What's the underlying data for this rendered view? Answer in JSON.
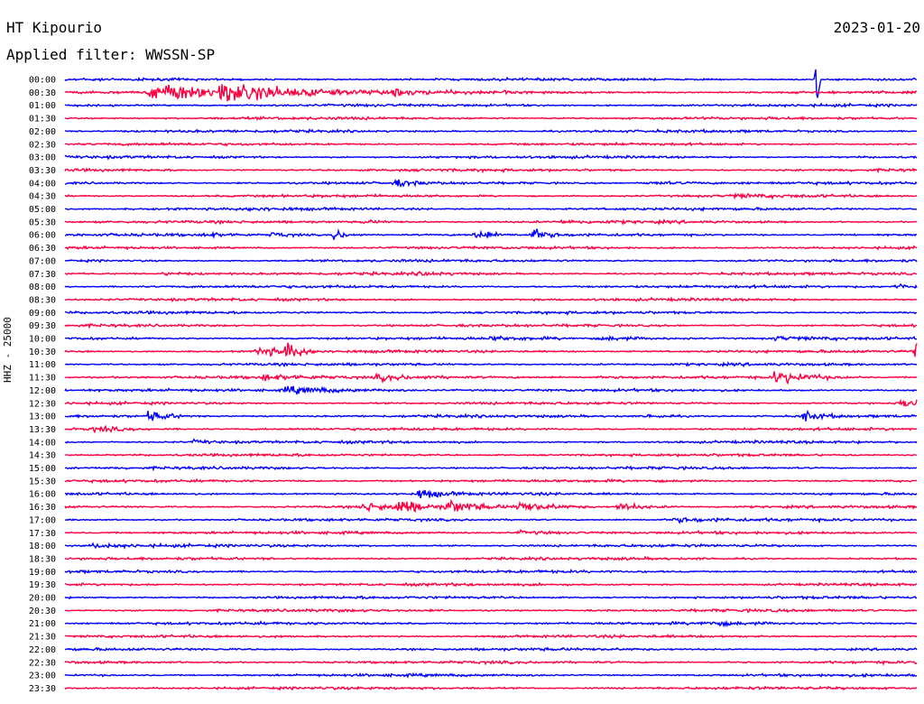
{
  "header": {
    "station": "HT Kipourio",
    "date": "2023-01-20",
    "filter_text": "Applied filter: WWSSN-SP",
    "channel_label": "HHZ - 25000"
  },
  "colors": {
    "trace_a": "#0000ff",
    "trace_b": "#ff0040",
    "text": "#000000",
    "background": "#ffffff"
  },
  "chart_data": {
    "type": "line",
    "title": "HT Kipourio",
    "subtitle": "Applied filter: WWSSN-SP",
    "ylabel": "HHZ - 25000",
    "xlabel": "",
    "row_labels": [
      "00:00",
      "00:30",
      "01:00",
      "01:30",
      "02:00",
      "02:30",
      "03:00",
      "03:30",
      "04:00",
      "04:30",
      "05:00",
      "05:30",
      "06:00",
      "06:30",
      "07:00",
      "07:30",
      "08:00",
      "08:30",
      "09:00",
      "09:30",
      "10:00",
      "10:30",
      "11:00",
      "11:30",
      "12:00",
      "12:30",
      "13:00",
      "13:30",
      "14:00",
      "14:30",
      "15:00",
      "15:30",
      "16:00",
      "16:30",
      "17:00",
      "17:30",
      "18:00",
      "18:30",
      "19:00",
      "19:30",
      "20:00",
      "20:30",
      "21:00",
      "21:30",
      "22:00",
      "22:30",
      "23:00",
      "23:30"
    ],
    "row_duration_minutes": 30,
    "color_cycle": [
      "blue",
      "red"
    ],
    "events": [
      {
        "row": "00:00",
        "minute": 26.5,
        "amp": 2.2
      },
      {
        "row": "00:30",
        "minute": 3.0,
        "amp": 2.5,
        "coda": 2.5
      },
      {
        "row": "00:30",
        "minute": 5.5,
        "amp": 2.0,
        "coda": 2.5
      },
      {
        "row": "00:30",
        "minute": 8.5,
        "amp": 0.8,
        "coda": 0.8
      },
      {
        "row": "00:30",
        "minute": 11.5,
        "amp": 0.5,
        "coda": 0.6
      },
      {
        "row": "00:30",
        "minute": 13.5,
        "amp": 0.4,
        "coda": 0.5
      },
      {
        "row": "00:30",
        "minute": 11.5,
        "amp": 0.5,
        "coda": 0.4
      },
      {
        "row": "00:30",
        "minute": 15.5,
        "amp": 0.3,
        "coda": 0.5
      },
      {
        "row": "04:00",
        "minute": 11.7,
        "amp": 0.9,
        "coda": 0.5
      },
      {
        "row": "04:00",
        "minute": 20.5,
        "amp": 0.4,
        "coda": 1.5
      },
      {
        "row": "04:30",
        "minute": 23.5,
        "amp": 0.4,
        "coda": 1.5
      },
      {
        "row": "05:00",
        "minute": 6.5,
        "amp": 0.4,
        "coda": 0.8
      },
      {
        "row": "05:30",
        "minute": 10.5,
        "amp": 0.4,
        "coda": 1.0
      },
      {
        "row": "05:30",
        "minute": 17.5,
        "amp": 0.3,
        "coda": 1.5
      },
      {
        "row": "06:00",
        "minute": 5.0,
        "amp": 0.6,
        "coda": 0.6
      },
      {
        "row": "06:00",
        "minute": 7.3,
        "amp": 0.7,
        "coda": 0.6
      },
      {
        "row": "06:00",
        "minute": 9.5,
        "amp": 1.6,
        "coda": 0.4
      },
      {
        "row": "06:00",
        "minute": 14.5,
        "amp": 1.5,
        "coda": 0.4
      },
      {
        "row": "06:00",
        "minute": 16.5,
        "amp": 1.5,
        "coda": 0.4
      },
      {
        "row": "06:00",
        "minute": 31.2,
        "amp": 2.0,
        "coda": 0.3
      },
      {
        "row": "07:30",
        "minute": 3.5,
        "amp": 0.4,
        "coda": 1.0
      },
      {
        "row": "07:30",
        "minute": 12.5,
        "amp": 0.4,
        "coda": 1.0
      },
      {
        "row": "08:00",
        "minute": 29.2,
        "amp": 0.6,
        "coda": 1.5
      },
      {
        "row": "10:00",
        "minute": 15.0,
        "amp": 0.4,
        "coda": 1.5
      },
      {
        "row": "10:00",
        "minute": 19.0,
        "amp": 0.5,
        "coda": 1.5
      },
      {
        "row": "10:00",
        "minute": 25.0,
        "amp": 0.5,
        "coda": 1.5
      },
      {
        "row": "10:30",
        "minute": 6.8,
        "amp": 1.5,
        "coda": 0.8
      },
      {
        "row": "10:30",
        "minute": 7.8,
        "amp": 2.5,
        "coda": 0.4
      },
      {
        "row": "10:30",
        "minute": 30.0,
        "amp": 3.0,
        "coda": 0.6
      },
      {
        "row": "11:30",
        "minute": 7.0,
        "amp": 0.7,
        "coda": 1.5
      },
      {
        "row": "11:30",
        "minute": 11.0,
        "amp": 0.8,
        "coda": 2.0
      },
      {
        "row": "11:30",
        "minute": 25.0,
        "amp": 2.0,
        "coda": 1.0
      },
      {
        "row": "12:00",
        "minute": 7.8,
        "amp": 1.0,
        "coda": 2.0
      },
      {
        "row": "12:30",
        "minute": 29.5,
        "amp": 1.2,
        "coda": 1.5
      },
      {
        "row": "13:00",
        "minute": 3.0,
        "amp": 2.0,
        "coda": 0.5
      },
      {
        "row": "13:00",
        "minute": 26.0,
        "amp": 1.5,
        "coda": 0.6
      },
      {
        "row": "13:00",
        "minute": 20.5,
        "amp": 0.5,
        "coda": 0.8
      },
      {
        "row": "13:00",
        "minute": 31.5,
        "amp": 1.6,
        "coda": 0.8
      },
      {
        "row": "13:30",
        "minute": 1.0,
        "amp": 0.8,
        "coda": 1.0
      },
      {
        "row": "14:00",
        "minute": 4.5,
        "amp": 0.5,
        "coda": 0.8
      },
      {
        "row": "16:00",
        "minute": 12.5,
        "amp": 1.5,
        "coda": 0.6
      },
      {
        "row": "16:30",
        "minute": 10.5,
        "amp": 1.2,
        "coda": 1.0
      },
      {
        "row": "16:30",
        "minute": 11.8,
        "amp": 2.5,
        "coda": 0.5
      },
      {
        "row": "16:30",
        "minute": 13.5,
        "amp": 2.0,
        "coda": 0.8
      },
      {
        "row": "16:30",
        "minute": 16.0,
        "amp": 1.5,
        "coda": 1.0
      },
      {
        "row": "16:30",
        "minute": 19.5,
        "amp": 1.2,
        "coda": 0.8
      },
      {
        "row": "17:00",
        "minute": 21.5,
        "amp": 0.6,
        "coda": 1.5
      },
      {
        "row": "17:00",
        "minute": 31.0,
        "amp": 0.7,
        "coda": 1.0
      },
      {
        "row": "17:30",
        "minute": 16.0,
        "amp": 0.5,
        "coda": 1.5
      },
      {
        "row": "18:00",
        "minute": 1.0,
        "amp": 0.5,
        "coda": 1.5
      },
      {
        "row": "21:00",
        "minute": 22.5,
        "amp": 0.5,
        "coda": 1.0
      }
    ]
  }
}
